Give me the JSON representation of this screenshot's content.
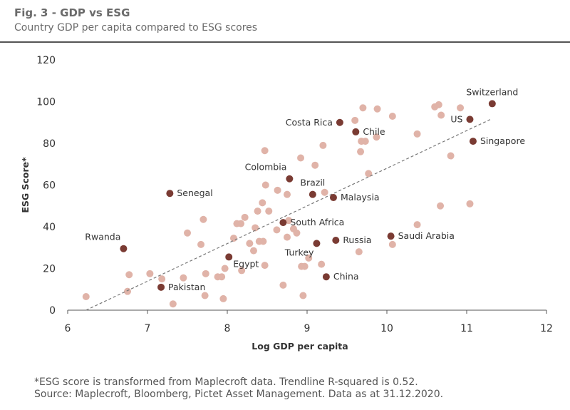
{
  "header": {
    "title": "Fig. 3 - GDP vs ESG",
    "subtitle": "Country GDP per capita compared to ESG scores"
  },
  "footnote": {
    "line1": "*ESG score is transformed from Maplecroft data. Trendline R-squared is 0.52.",
    "line2": "Source: Maplecroft, Bloomberg, Pictet Asset Management. Data as at 31.12.2020."
  },
  "colors": {
    "highlight": "#7a3b33",
    "other": "#e0b3a8",
    "trendline": "#777777"
  },
  "chart_data": {
    "type": "scatter",
    "title": "Fig. 3 - GDP vs ESG",
    "subtitle": "Country GDP per capita compared to ESG scores",
    "xlabel": "Log GDP per capita",
    "ylabel": "ESG Score*",
    "xlim": [
      6,
      12
    ],
    "ylim": [
      0,
      120
    ],
    "xticks": [
      6,
      7,
      8,
      9,
      10,
      11,
      12
    ],
    "yticks": [
      0,
      20,
      40,
      60,
      80,
      100,
      120
    ],
    "grid": false,
    "legend": "none",
    "trendline": {
      "style": "dashed",
      "from": [
        6.23,
        0
      ],
      "to": [
        11.3,
        91.5
      ],
      "r_squared": 0.52
    },
    "highlighted": [
      {
        "label": "Switzerland",
        "x": 11.32,
        "y": 99,
        "label_pos": "above"
      },
      {
        "label": "US",
        "x": 11.04,
        "y": 91.5,
        "label_pos": "left"
      },
      {
        "label": "Singapore",
        "x": 11.08,
        "y": 81,
        "label_pos": "right"
      },
      {
        "label": "Costa Rica",
        "x": 9.41,
        "y": 90,
        "label_pos": "left"
      },
      {
        "label": "Chile",
        "x": 9.61,
        "y": 85.5,
        "label_pos": "right"
      },
      {
        "label": "Colombia",
        "x": 8.78,
        "y": 63,
        "label_pos": "above-left"
      },
      {
        "label": "Brazil",
        "x": 9.07,
        "y": 55.5,
        "label_pos": "above"
      },
      {
        "label": "Malaysia",
        "x": 9.33,
        "y": 54,
        "label_pos": "right"
      },
      {
        "label": "Senegal",
        "x": 7.28,
        "y": 56,
        "label_pos": "right"
      },
      {
        "label": "South Africa",
        "x": 8.7,
        "y": 42,
        "label_pos": "right"
      },
      {
        "label": "Rwanda",
        "x": 6.7,
        "y": 29.5,
        "label_pos": "above-left"
      },
      {
        "label": "Egypt",
        "x": 8.02,
        "y": 25.5,
        "label_pos": "below-right"
      },
      {
        "label": "Turkey",
        "x": 9.12,
        "y": 32,
        "label_pos": "below-left"
      },
      {
        "label": "Russia",
        "x": 9.36,
        "y": 33.5,
        "label_pos": "right"
      },
      {
        "label": "Saudi Arabia",
        "x": 10.05,
        "y": 35.5,
        "label_pos": "right"
      },
      {
        "label": "Pakistan",
        "x": 7.17,
        "y": 11,
        "label_pos": "right"
      },
      {
        "label": "China",
        "x": 9.24,
        "y": 16,
        "label_pos": "right"
      }
    ],
    "others": [
      [
        6.23,
        6.5
      ],
      [
        6.75,
        9
      ],
      [
        6.77,
        17
      ],
      [
        7.03,
        17.5
      ],
      [
        7.18,
        15
      ],
      [
        7.32,
        3
      ],
      [
        7.45,
        15.5
      ],
      [
        7.5,
        37
      ],
      [
        7.67,
        31.5
      ],
      [
        7.7,
        43.5
      ],
      [
        7.72,
        7
      ],
      [
        7.73,
        17.5
      ],
      [
        7.88,
        16
      ],
      [
        7.93,
        16
      ],
      [
        7.95,
        5.5
      ],
      [
        7.97,
        20
      ],
      [
        8.08,
        34.5
      ],
      [
        8.12,
        41.5
      ],
      [
        8.17,
        41.5
      ],
      [
        8.18,
        19
      ],
      [
        8.22,
        44.5
      ],
      [
        8.28,
        32
      ],
      [
        8.33,
        28.5
      ],
      [
        8.35,
        39.5
      ],
      [
        8.38,
        47.5
      ],
      [
        8.4,
        33
      ],
      [
        8.45,
        33
      ],
      [
        8.44,
        51.5
      ],
      [
        8.47,
        21.5
      ],
      [
        8.47,
        76.5
      ],
      [
        8.48,
        60
      ],
      [
        8.52,
        47.5
      ],
      [
        8.62,
        38.5
      ],
      [
        8.63,
        57.5
      ],
      [
        8.7,
        12
      ],
      [
        8.75,
        35
      ],
      [
        8.75,
        55.5
      ],
      [
        8.77,
        43
      ],
      [
        8.83,
        39
      ],
      [
        8.87,
        37
      ],
      [
        8.92,
        73
      ],
      [
        8.93,
        21
      ],
      [
        8.95,
        7
      ],
      [
        8.97,
        21
      ],
      [
        9.02,
        25
      ],
      [
        9.1,
        69.5
      ],
      [
        9.18,
        22
      ],
      [
        9.2,
        79
      ],
      [
        9.22,
        56.5
      ],
      [
        9.6,
        91
      ],
      [
        9.65,
        28
      ],
      [
        9.67,
        76
      ],
      [
        9.68,
        81
      ],
      [
        9.7,
        97
      ],
      [
        9.73,
        81
      ],
      [
        9.77,
        65.5
      ],
      [
        9.87,
        83
      ],
      [
        9.88,
        96.5
      ],
      [
        10.07,
        93
      ],
      [
        10.07,
        31.5
      ],
      [
        10.38,
        84.5
      ],
      [
        10.38,
        41
      ],
      [
        10.6,
        97.5
      ],
      [
        10.65,
        98.5
      ],
      [
        10.67,
        50
      ],
      [
        10.68,
        93.5
      ],
      [
        10.8,
        74
      ],
      [
        10.92,
        97
      ],
      [
        11.04,
        51
      ]
    ]
  }
}
